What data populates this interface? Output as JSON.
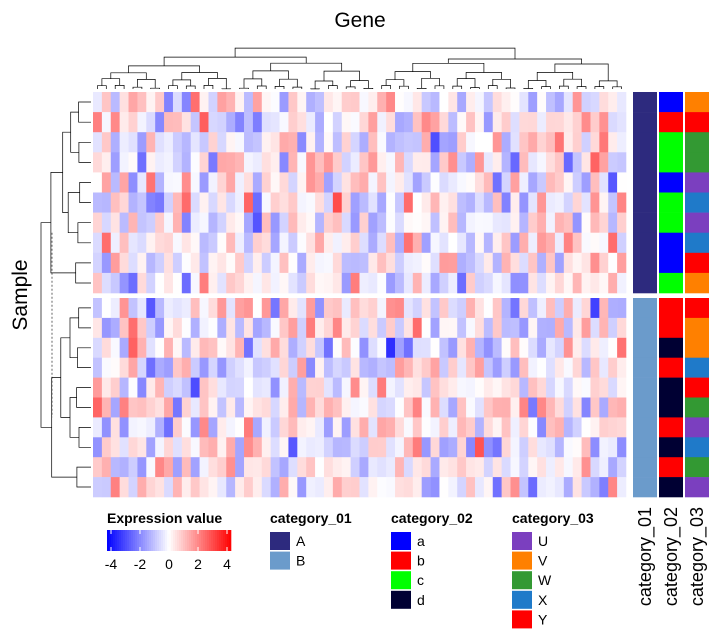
{
  "chart_data": {
    "type": "heatmap",
    "column_title": "Gene",
    "row_title": "Sample",
    "n_rows": 20,
    "n_cols": 60,
    "row_groups": [
      {
        "category_01": "A",
        "rows": 10
      },
      {
        "category_01": "B",
        "rows": 10
      }
    ],
    "color_scale": {
      "name": "Expression value",
      "stops": [
        {
          "value": -4,
          "color": "#0000ff"
        },
        {
          "value": 0,
          "color": "#ffffff"
        },
        {
          "value": 4,
          "color": "#ff0000"
        }
      ],
      "ticks": [
        "-4",
        "-2",
        "0",
        "2",
        "4"
      ]
    },
    "annotation_names": [
      "category_01",
      "category_02",
      "category_03"
    ],
    "annotation_rows": [
      [
        "A",
        "a",
        "V"
      ],
      [
        "A",
        "b",
        "Y"
      ],
      [
        "A",
        "c",
        "W"
      ],
      [
        "A",
        "c",
        "W"
      ],
      [
        "A",
        "a",
        "U"
      ],
      [
        "A",
        "c",
        "X"
      ],
      [
        "A",
        "c",
        "U"
      ],
      [
        "A",
        "a",
        "X"
      ],
      [
        "A",
        "a",
        "Y"
      ],
      [
        "A",
        "c",
        "V"
      ],
      [
        "B",
        "b",
        "Y"
      ],
      [
        "B",
        "b",
        "V"
      ],
      [
        "B",
        "d",
        "V"
      ],
      [
        "B",
        "b",
        "X"
      ],
      [
        "B",
        "d",
        "Y"
      ],
      [
        "B",
        "d",
        "W"
      ],
      [
        "B",
        "b",
        "U"
      ],
      [
        "B",
        "d",
        "X"
      ],
      [
        "B",
        "b",
        "W"
      ],
      [
        "B",
        "d",
        "U"
      ]
    ],
    "row_dendrogram": true,
    "column_dendrogram": true
  },
  "legends": [
    {
      "title": "category_01",
      "items": [
        {
          "label": "A",
          "color": "#2d2a7e"
        },
        {
          "label": "B",
          "color": "#6b9bcb"
        }
      ]
    },
    {
      "title": "category_02",
      "items": [
        {
          "label": "a",
          "color": "#0000ff"
        },
        {
          "label": "b",
          "color": "#ff0000"
        },
        {
          "label": "c",
          "color": "#00ff00"
        },
        {
          "label": "d",
          "color": "#000033"
        }
      ]
    },
    {
      "title": "category_03",
      "items": [
        {
          "label": "U",
          "color": "#7b3fbf"
        },
        {
          "label": "V",
          "color": "#ff8000"
        },
        {
          "label": "W",
          "color": "#339933"
        },
        {
          "label": "X",
          "color": "#1f7ac9"
        },
        {
          "label": "Y",
          "color": "#ff0000"
        }
      ]
    }
  ]
}
